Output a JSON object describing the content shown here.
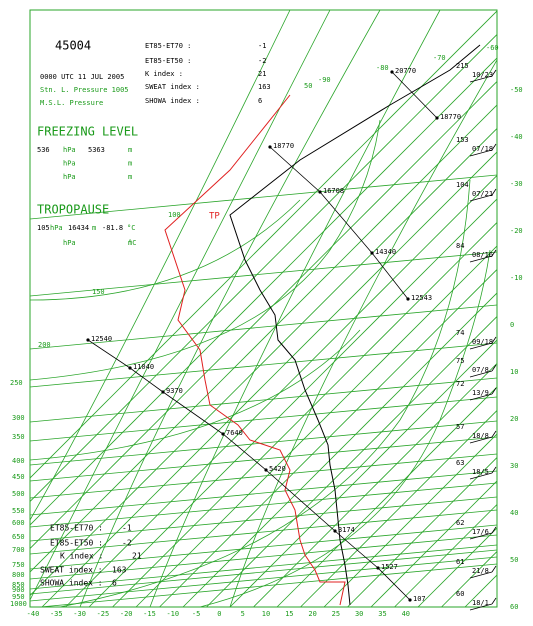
{
  "header": {
    "station": "45004",
    "datetime": "0000 UTC 11 JUL 2005",
    "stn_pressure": "Stn. L. Pressure 1005",
    "msl_pressure": "M.S.L. Pressure"
  },
  "indices": [
    {
      "label": "ET85-ET70 :",
      "value": "-1"
    },
    {
      "label": "ET85-ET50 :",
      "value": "-2"
    },
    {
      "label": "K index :",
      "value": "21"
    },
    {
      "label": "SWEAT index :",
      "value": "163"
    },
    {
      "label": "SHOWA index :",
      "value": "6"
    }
  ],
  "freezing_level": {
    "title": "FREEZING LEVEL",
    "rows": [
      {
        "p": "536",
        "p_unit": "hPa",
        "h": "5363",
        "h_unit": "m"
      },
      {
        "p_unit": "hPa",
        "h_unit": "m"
      },
      {
        "p_unit": "hPa",
        "h_unit": "m"
      }
    ]
  },
  "tropopause": {
    "title": "TROPOPAUSE",
    "rows": [
      {
        "p": "105",
        "p_unit": "hPa",
        "h": "16434",
        "h_unit": "m",
        "t": "-81.8",
        "t_unit": "°C"
      },
      {
        "p_unit": "hPa",
        "h_unit": "m",
        "t_unit": "°C"
      }
    ],
    "marker": "TP"
  },
  "pressure_labels": [
    "100",
    "150",
    "200",
    "250",
    "300",
    "350",
    "400",
    "450",
    "500",
    "550",
    "600",
    "650",
    "700",
    "750",
    "800",
    "850",
    "900",
    "950",
    "1000"
  ],
  "temperature_labels": [
    "-40",
    "-35",
    "-30",
    "-25",
    "-20",
    "-15",
    "-10",
    "-5",
    "0",
    "5",
    "10",
    "15",
    "20",
    "25",
    "30",
    "35",
    "40"
  ],
  "right_labels": [
    "-60",
    "-50",
    "-40",
    "-30",
    "-20",
    "-10",
    "0",
    "10",
    "20",
    "30",
    "40",
    "50",
    "60"
  ],
  "top_labels": [
    "50",
    "-90",
    "-80",
    "-70"
  ],
  "height_labels": [
    "20770",
    "18770",
    "18770",
    "16708",
    "14340",
    "12543",
    "12540",
    "11040",
    "9370",
    "7640",
    "5420",
    "3174",
    "1527",
    "107"
  ],
  "winds": [
    {
      "h": "215",
      "w": "10/23"
    },
    {
      "h": "153",
      "w": "07/18"
    },
    {
      "h": "104",
      "w": "07/21"
    },
    {
      "h": "84",
      "w": "08/16"
    },
    {
      "h": "74",
      "w": "09/18"
    },
    {
      "h": "75",
      "w": "07/8"
    },
    {
      "h": "72",
      "w": "13/9"
    },
    {
      "h": "57",
      "w": "18/8"
    },
    {
      "h": "63",
      "w": "18/5"
    },
    {
      "h": "62",
      "w": "17/6"
    },
    {
      "h": "61",
      "w": "21/8"
    },
    {
      "h": "60",
      "w": "18/1"
    }
  ]
}
